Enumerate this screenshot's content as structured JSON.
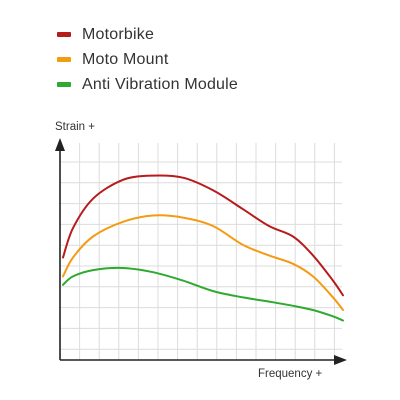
{
  "chart_data": {
    "type": "line",
    "title": "",
    "xlabel": "Frequency +",
    "ylabel": "Strain +",
    "grid": true,
    "legend_position": "top-left",
    "xlim": [
      0,
      14
    ],
    "ylim": [
      0,
      10
    ],
    "x_ticks_shown": false,
    "y_ticks_shown": false,
    "series": [
      {
        "name": "Motorbike",
        "color": "#b71c1c",
        "x": [
          0,
          0.5,
          1.5,
          3,
          4.5,
          6,
          7.5,
          9,
          10.3,
          11.5,
          12.5,
          13.5,
          14
        ],
        "y": [
          4.5,
          5.9,
          7.3,
          8.2,
          8.4,
          8.3,
          7.7,
          6.8,
          6.0,
          5.5,
          4.6,
          3.4,
          2.7
        ]
      },
      {
        "name": "Moto Mount",
        "color": "#f39c12",
        "x": [
          0,
          0.5,
          1.5,
          3,
          4.5,
          6,
          7.5,
          9,
          10.3,
          11.5,
          12.5,
          13.5,
          14
        ],
        "y": [
          3.6,
          4.5,
          5.5,
          6.2,
          6.5,
          6.4,
          6.0,
          5.1,
          4.6,
          4.2,
          3.6,
          2.6,
          2.0
        ]
      },
      {
        "name": "Anti Vibration Module",
        "color": "#2eaa2e",
        "x": [
          0,
          0.5,
          1.5,
          3,
          4.5,
          6,
          7.5,
          9,
          10.3,
          11.5,
          12.5,
          13.5,
          14
        ],
        "y": [
          3.2,
          3.6,
          3.9,
          4.0,
          3.8,
          3.4,
          2.9,
          2.6,
          2.4,
          2.2,
          2.0,
          1.7,
          1.5
        ]
      }
    ]
  }
}
